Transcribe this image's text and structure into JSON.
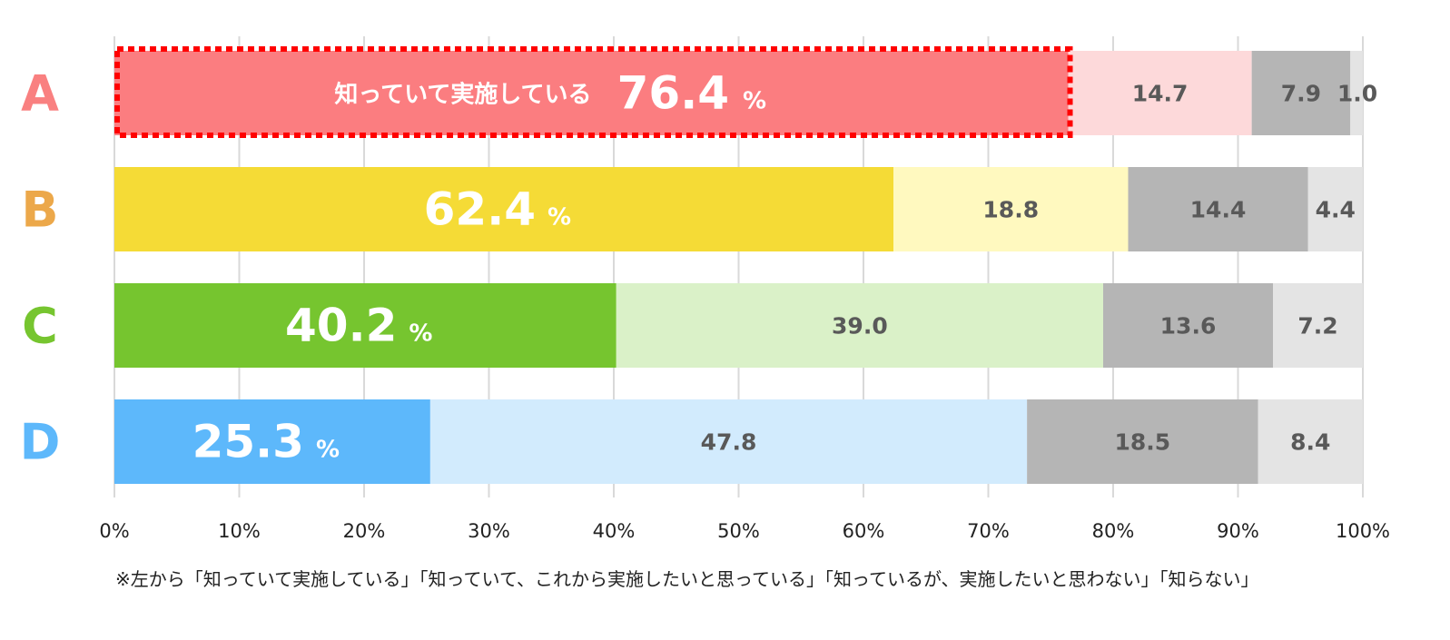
{
  "chart_data": {
    "type": "bar",
    "orientation": "horizontal",
    "stacked": true,
    "categories": [
      "A",
      "B",
      "C",
      "D"
    ],
    "category_colors": [
      "#f98080",
      "#eca84a",
      "#76c52f",
      "#5db8fb"
    ],
    "series": [
      {
        "values": [
          76.4,
          62.4,
          40.2,
          25.3
        ],
        "colors": [
          "#fb7d80",
          "#f5db36",
          "#76c52f",
          "#5db8fb"
        ]
      },
      {
        "values": [
          14.7,
          18.8,
          39.0,
          47.8
        ],
        "colors": [
          "#fdd9da",
          "#fff9bf",
          "#daf1c8",
          "#d2ebfd"
        ]
      },
      {
        "values": [
          7.9,
          14.4,
          13.6,
          18.5
        ],
        "colors": [
          "#b5b5b5",
          "#b5b5b5",
          "#b5b5b5",
          "#b5b5b5"
        ]
      },
      {
        "values": [
          1.0,
          4.4,
          7.2,
          8.4
        ],
        "colors": [
          "#e4e4e4",
          "#e4e4e4",
          "#e4e4e4",
          "#e4e4e4"
        ]
      }
    ],
    "value_labels": [
      [
        "76.4",
        "14.7",
        "7.9",
        "1.0"
      ],
      [
        "62.4",
        "18.8",
        "14.4",
        "4.4"
      ],
      [
        "40.2",
        "39.0",
        "13.6",
        "7.2"
      ],
      [
        "25.3",
        "47.8",
        "18.5",
        "8.4"
      ]
    ],
    "unit_label": "%",
    "highlight_caption": "知っていて実施している",
    "highlight_index": 0,
    "highlight_border_color": "#ff0000",
    "xlim": [
      0,
      100
    ],
    "x_ticks": [
      "0%",
      "10%",
      "20%",
      "30%",
      "40%",
      "50%",
      "60%",
      "70%",
      "80%",
      "90%",
      "100%"
    ],
    "grid": true
  },
  "footnote": "※左から「知っていて実施している」「知っていて、これから実施したいと思っている」「知っているが、実施したいと思わない」「知らない」"
}
